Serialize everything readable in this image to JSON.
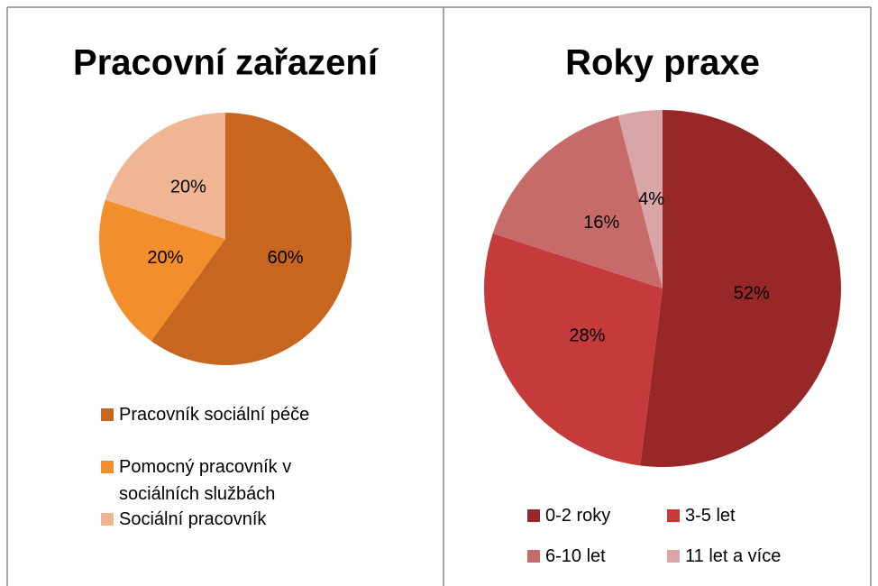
{
  "chart_data": [
    {
      "type": "pie",
      "title": "Pracovní zařazení",
      "categories": [
        "Pracovník sociální péče",
        "Pomocný pracovník v sociálních službách",
        "Sociální pracovník"
      ],
      "values": [
        60,
        20,
        20
      ],
      "value_labels": [
        "60%",
        "20%",
        "20%"
      ],
      "colors": [
        "#c7661f",
        "#f28f2c",
        "#f0b592"
      ],
      "legend": "bottom"
    },
    {
      "type": "pie",
      "title": "Roky praxe",
      "categories": [
        "0-2 roky",
        "3-5 let",
        "6-10 let",
        "11 let a více"
      ],
      "values": [
        52,
        28,
        16,
        4
      ],
      "value_labels": [
        "52%",
        "28%",
        "16%",
        "4%"
      ],
      "colors": [
        "#982828",
        "#c53b3b",
        "#c76a6a",
        "#d8a6a6"
      ],
      "legend": "bottom"
    }
  ]
}
